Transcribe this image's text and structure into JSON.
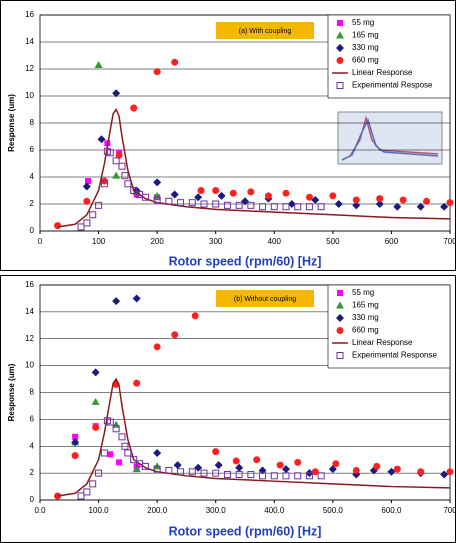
{
  "chart_data": [
    {
      "type": "scatter",
      "annotation": "(a) With coupling",
      "xlabel": "Rotor speed (rpm/60) [Hz]",
      "ylabel": "Response (um)",
      "xlim": [
        0,
        700
      ],
      "xticks": [
        0,
        100,
        200,
        300,
        400,
        500,
        600,
        700
      ],
      "ylim": [
        0,
        16
      ],
      "yticks": [
        0,
        2,
        4,
        6,
        8,
        10,
        12,
        14,
        16
      ],
      "grid": true,
      "legend": "upper right",
      "series": [
        {
          "name": "55 mg",
          "color": "#ff00ff",
          "marker": "square",
          "x": [
            82,
            115,
            135,
            165,
            200
          ],
          "values": [
            3.7,
            6.5,
            5.8,
            2.7,
            2.5
          ]
        },
        {
          "name": "165 mg",
          "color": "#339933",
          "marker": "triangle",
          "x": [
            100,
            130,
            165,
            200
          ],
          "values": [
            12.3,
            4.1,
            2.9,
            2.6
          ]
        },
        {
          "name": "330 mg",
          "color": "#1a1a80",
          "marker": "diamond",
          "x": [
            80,
            105,
            130,
            165,
            200,
            230,
            270,
            310,
            350,
            390,
            430,
            470,
            510,
            540,
            580,
            610,
            650,
            690
          ],
          "values": [
            3.3,
            6.8,
            10.2,
            3.0,
            3.6,
            2.7,
            2.5,
            2.6,
            2.2,
            2.4,
            2.0,
            2.3,
            2.0,
            1.9,
            2.0,
            1.8,
            1.8,
            1.8
          ]
        },
        {
          "name": "660 mg",
          "color": "#ff2020",
          "marker": "circle",
          "x": [
            30,
            80,
            110,
            135,
            160,
            200,
            230,
            275,
            300,
            330,
            360,
            390,
            420,
            460,
            500,
            540,
            580,
            620,
            660,
            700
          ],
          "values": [
            0.4,
            2.2,
            3.7,
            5.6,
            9.1,
            11.8,
            12.5,
            3.0,
            3.0,
            2.8,
            2.9,
            2.6,
            2.8,
            2.5,
            2.6,
            2.3,
            2.4,
            2.3,
            2.2,
            2.1
          ]
        },
        {
          "name": "Linear Response",
          "color": "#8b1a1a",
          "marker": "line",
          "x": [
            30,
            60,
            80,
            100,
            110,
            120,
            125,
            130,
            135,
            140,
            150,
            160,
            180,
            200,
            250,
            300,
            400,
            500,
            600,
            700
          ],
          "values": [
            0.3,
            0.5,
            1.2,
            3,
            5,
            7.5,
            8.7,
            9,
            8.5,
            7,
            4.5,
            3,
            2.4,
            2.1,
            1.8,
            1.6,
            1.4,
            1.2,
            1.0,
            0.9
          ]
        },
        {
          "name": "Experimental Respose",
          "color": "#7030a0",
          "marker": "open-square",
          "x": [
            70,
            80,
            90,
            100,
            110,
            115,
            120,
            130,
            140,
            145,
            150,
            160,
            170,
            180,
            200,
            220,
            240,
            260,
            280,
            300,
            320,
            340,
            360,
            380,
            400,
            420,
            440,
            460,
            480
          ],
          "values": [
            0.3,
            0.6,
            1.2,
            1.9,
            3.5,
            5.9,
            5.8,
            5.2,
            4.8,
            4.1,
            3.5,
            3.0,
            2.7,
            2.5,
            2.3,
            2.2,
            2.1,
            2.1,
            2.0,
            2.0,
            1.9,
            1.9,
            1.9,
            1.8,
            1.8,
            1.8,
            1.8,
            1.8,
            1.8
          ]
        }
      ]
    },
    {
      "type": "scatter",
      "annotation": "(b) Without coupling",
      "xlabel": "Rotor speed (rpm/60) [Hz]",
      "ylabel": "Response (um)",
      "xlim": [
        0,
        700
      ],
      "xticks": [
        {
          "value": 0,
          "label": "0.0"
        },
        {
          "value": 100,
          "label": "100.0"
        },
        {
          "value": 200,
          "label": "200.0"
        },
        {
          "value": 300,
          "label": "300.0"
        },
        {
          "value": 400,
          "label": "400.0"
        },
        {
          "value": 500,
          "label": "500.0"
        },
        {
          "value": 600,
          "label": "600.0"
        },
        {
          "value": 700,
          "label": "700"
        }
      ],
      "ylim": [
        0,
        16
      ],
      "yticks": [
        0,
        2,
        4,
        6,
        8,
        10,
        12,
        14,
        16
      ],
      "grid": true,
      "legend": "upper right",
      "series": [
        {
          "name": "55 mg",
          "color": "#ff00ff",
          "marker": "square",
          "x": [
            60,
            95,
            120,
            135,
            165
          ],
          "values": [
            4.7,
            5.5,
            3.4,
            2.8,
            2.5
          ]
        },
        {
          "name": "165 mg",
          "color": "#339933",
          "marker": "triangle",
          "x": [
            60,
            95,
            130,
            165,
            200
          ],
          "values": [
            4.3,
            7.3,
            5.6,
            2.3,
            2.5
          ]
        },
        {
          "name": "330 mg",
          "color": "#1a1a80",
          "marker": "diamond",
          "x": [
            60,
            95,
            130,
            165,
            200,
            235,
            270,
            305,
            340,
            380,
            420,
            460,
            500,
            540,
            570,
            600,
            650,
            690
          ],
          "values": [
            4.3,
            9.5,
            14.8,
            15.0,
            3.5,
            2.6,
            2.4,
            2.6,
            2.4,
            2.2,
            2.3,
            2.0,
            2.3,
            1.9,
            2.2,
            2.1,
            2.0,
            1.9
          ]
        },
        {
          "name": "660 mg",
          "color": "#ff2020",
          "marker": "circle",
          "x": [
            30,
            60,
            95,
            130,
            165,
            200,
            230,
            265,
            300,
            335,
            370,
            410,
            440,
            470,
            505,
            540,
            575,
            610,
            650,
            700
          ],
          "values": [
            0.3,
            3.3,
            5.4,
            8.6,
            8.7,
            11.4,
            12.3,
            13.7,
            3.6,
            2.9,
            3.0,
            2.6,
            2.8,
            2.1,
            2.7,
            2.2,
            2.5,
            2.3,
            2.1,
            2.1
          ]
        },
        {
          "name": "Linear Response",
          "color": "#8b1a1a",
          "marker": "line",
          "x": [
            30,
            60,
            80,
            100,
            110,
            120,
            125,
            130,
            135,
            140,
            150,
            160,
            180,
            200,
            250,
            300,
            400,
            500,
            600,
            700
          ],
          "values": [
            0.3,
            0.5,
            1.2,
            3,
            5,
            7.5,
            8.7,
            9,
            8.5,
            7,
            4.5,
            3,
            2.4,
            2.1,
            1.8,
            1.6,
            1.4,
            1.2,
            1.0,
            0.9
          ]
        },
        {
          "name": "Experimental Response",
          "color": "#7030a0",
          "marker": "open-square",
          "x": [
            70,
            80,
            90,
            100,
            110,
            115,
            120,
            130,
            140,
            145,
            150,
            160,
            170,
            180,
            200,
            220,
            240,
            260,
            280,
            300,
            320,
            340,
            360,
            380,
            400,
            420,
            440,
            460,
            480
          ],
          "values": [
            0.3,
            0.6,
            1.2,
            2.0,
            3.5,
            5.9,
            5.8,
            5.3,
            4.7,
            4.0,
            3.5,
            3.0,
            2.7,
            2.5,
            2.3,
            2.2,
            2.1,
            2.1,
            2.0,
            2.0,
            1.9,
            1.9,
            1.9,
            1.8,
            1.8,
            1.8,
            1.8,
            1.8,
            1.8
          ]
        }
      ]
    }
  ]
}
